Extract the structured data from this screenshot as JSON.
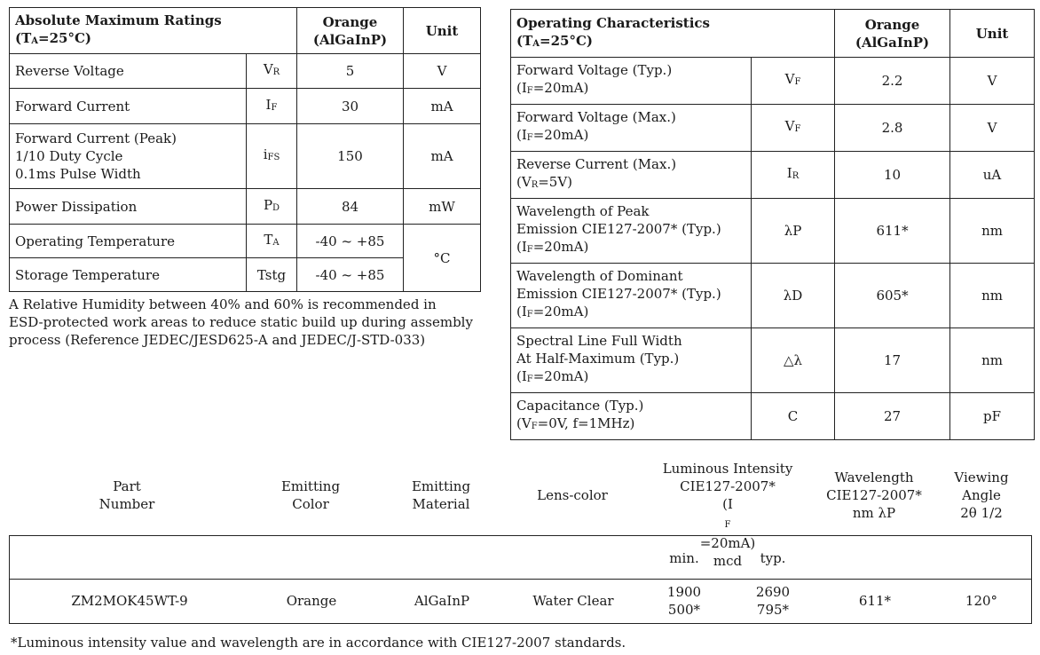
{
  "absolute_max": {
    "header": {
      "title": "Absolute Maximum Ratings",
      "cond_prefix": "(T",
      "cond_sub": "A",
      "cond_suffix": "=25°C)",
      "col_orange": "Orange",
      "col_material": "(AlGaInP)",
      "col_unit": "Unit"
    },
    "rows": [
      {
        "param_lines": [
          "Reverse Voltage"
        ],
        "sym": "V",
        "sym_sub": "R",
        "value": "5",
        "unit": "V"
      },
      {
        "param_lines": [
          "Forward Current"
        ],
        "sym": "I",
        "sym_sub": "F",
        "value": "30",
        "unit": "mA"
      },
      {
        "param_lines": [
          "Forward Current (Peak)",
          "1/10 Duty Cycle",
          "0.1ms Pulse Width"
        ],
        "sym": "i",
        "sym_sub": "FS",
        "value": "150",
        "unit": "mA"
      },
      {
        "param_lines": [
          "Power Dissipation"
        ],
        "sym": "P",
        "sym_sub": "D",
        "value": "84",
        "unit": "mW"
      },
      {
        "param_lines": [
          "Operating Temperature"
        ],
        "sym": "T",
        "sym_sub": "A",
        "value": "-40 ~ +85",
        "unit": "°C"
      },
      {
        "param_lines": [
          "Storage Temperature"
        ],
        "sym": "Tstg",
        "sym_sub": "",
        "value": "-40 ~ +85"
      }
    ]
  },
  "note": {
    "lines": [
      "A Relative Humidity between 40% and 60% is recommended in",
      "ESD-protected work areas to reduce static build up during assembly",
      "process (Reference JEDEC/JESD625-A and JEDEC/J-STD-033)"
    ]
  },
  "operating": {
    "header": {
      "title": "Operating Characteristics",
      "cond_prefix": "(T",
      "cond_sub": "A",
      "cond_suffix": "=25°C)",
      "col_orange": "Orange",
      "col_material": "(AlGaInP)",
      "col_unit": "Unit"
    },
    "rows": [
      {
        "lines": [
          "Forward Voltage (Typ.)"
        ],
        "cond": {
          "p": "(I",
          "s": "F",
          "t": "=20mA)"
        },
        "sym": "V",
        "sym_sub": "F",
        "value": "2.2",
        "unit": "V"
      },
      {
        "lines": [
          "Forward Voltage (Max.)"
        ],
        "cond": {
          "p": "(I",
          "s": "F",
          "t": "=20mA)"
        },
        "sym": "V",
        "sym_sub": "F",
        "value": "2.8",
        "unit": "V"
      },
      {
        "lines": [
          "Reverse Current (Max.)"
        ],
        "cond": {
          "p": "(V",
          "s": "R",
          "t": "=5V)"
        },
        "sym": "I",
        "sym_sub": "R",
        "value": "10",
        "unit": "uA"
      },
      {
        "lines": [
          "Wavelength of Peak",
          "Emission  CIE127-2007* (Typ.)"
        ],
        "cond": {
          "p": "(I",
          "s": "F",
          "t": "=20mA)"
        },
        "sym": "λP",
        "sym_sub": "",
        "value": "611*",
        "unit": "nm"
      },
      {
        "lines": [
          "Wavelength of Dominant",
          "Emission  CIE127-2007* (Typ.)"
        ],
        "cond": {
          "p": "(I",
          "s": "F",
          "t": "=20mA)"
        },
        "sym": "λD",
        "sym_sub": "",
        "value": "605*",
        "unit": "nm"
      },
      {
        "lines": [
          "Spectral Line Full Width",
          "At Half-Maximum (Typ.)"
        ],
        "cond": {
          "p": "(I",
          "s": "F",
          "t": "=20mA)"
        },
        "sym": "△λ",
        "sym_sub": "",
        "value": "17",
        "unit": "nm"
      },
      {
        "lines": [
          "Capacitance (Typ.)"
        ],
        "cond": {
          "p": "(V",
          "s": "F",
          "t": "=0V, f=1MHz)"
        },
        "sym": "C",
        "sym_sub": "",
        "value": "27",
        "unit": "pF"
      }
    ]
  },
  "part_table": {
    "headers": {
      "part": [
        "Part",
        "Number"
      ],
      "color": [
        "Emitting",
        "Color"
      ],
      "material": [
        "Emitting",
        "Material"
      ],
      "lens": [
        "Lens-color"
      ],
      "lum_line1": "Luminous Intensity",
      "lum_line2": "CIE127-2007*",
      "lum_cond_p": "(I",
      "lum_cond_s": "F",
      "lum_cond_t": "=20mA)",
      "lum_unit": "mcd",
      "wave": [
        "Wavelength",
        "CIE127-2007*",
        "nm λP"
      ],
      "view": [
        "Viewing",
        "Angle",
        "2θ 1/2"
      ]
    },
    "sub_headers": {
      "min": "min.",
      "typ": "typ."
    },
    "row": {
      "part": "ZM2MOK45WT-9",
      "color": "Orange",
      "material": "AlGaInP",
      "lens": "Water Clear",
      "min": [
        "1900",
        "500*"
      ],
      "typ": [
        "2690",
        "795*"
      ],
      "wave": "611*",
      "view": "120°"
    }
  },
  "footnote": "*Luminous intensity value and wavelength are in accordance with CIE127-2007 standards."
}
